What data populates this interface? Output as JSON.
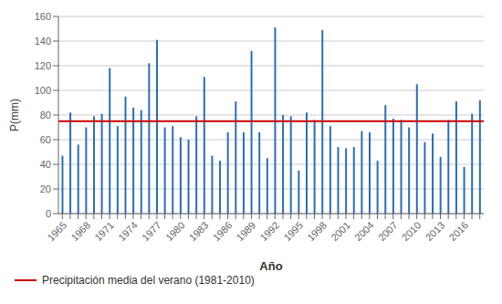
{
  "chart_data": {
    "type": "bar",
    "xlabel": "Año",
    "ylabel": "P(mm)",
    "categories": [
      "1965",
      null,
      null,
      "1968",
      null,
      null,
      "1971",
      null,
      null,
      "1974",
      null,
      null,
      "1977",
      null,
      null,
      "1980",
      null,
      null,
      "1983",
      null,
      null,
      "1986",
      null,
      null,
      "1989",
      null,
      null,
      "1992",
      null,
      null,
      "1995",
      null,
      null,
      "1998",
      null,
      null,
      "2001",
      null,
      null,
      "2004",
      null,
      null,
      "2007",
      null,
      null,
      "2010",
      null,
      null,
      "2013",
      null,
      null,
      "2016",
      null,
      null
    ],
    "values": [
      47,
      82,
      56,
      70,
      79,
      81,
      118,
      71,
      95,
      86,
      84,
      122,
      141,
      70,
      71,
      62,
      60,
      79,
      111,
      47,
      43,
      66,
      91,
      66,
      132,
      66,
      45,
      151,
      80,
      79,
      35,
      82,
      76,
      149,
      71,
      54,
      53,
      54,
      67,
      66,
      43,
      88,
      77,
      76,
      70,
      105,
      58,
      65,
      46,
      76,
      91,
      38,
      81,
      92
    ],
    "color": "#2b6cb8",
    "mean": {
      "value": 75,
      "label": "Precipitación media del verano (1981-2010)",
      "color": "#cc0000"
    },
    "ylim": [
      0,
      160
    ],
    "yticks": [
      0,
      20,
      40,
      60,
      80,
      100,
      120,
      140,
      160
    ],
    "grid": true,
    "legend": "lower left"
  }
}
